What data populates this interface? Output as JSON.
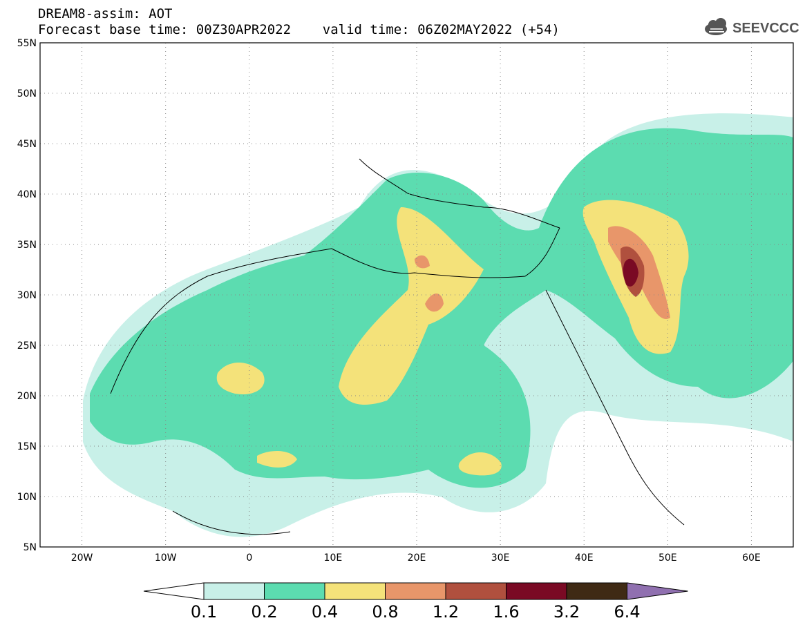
{
  "header": {
    "line1": "DREAM8-assim: AOT",
    "line2": "Forecast base time: 00Z30APR2022    valid time: 06Z02MAY2022 (+54)"
  },
  "logo": {
    "text": "SEEVCCC",
    "icon": "cloud-icon"
  },
  "map": {
    "lat_labels": [
      "55N",
      "50N",
      "45N",
      "40N",
      "35N",
      "30N",
      "25N",
      "20N",
      "15N",
      "10N",
      "5N"
    ],
    "lon_labels": [
      "20W",
      "10W",
      "0",
      "10E",
      "20E",
      "30E",
      "40E",
      "50E",
      "60E"
    ],
    "lat_range": [
      5,
      55
    ],
    "lon_range": [
      -25,
      65
    ],
    "grid": "dotted"
  },
  "colorbar": {
    "labels": [
      "0.1",
      "0.2",
      "0.4",
      "0.8",
      "1.2",
      "1.6",
      "3.2",
      "6.4"
    ],
    "colors": [
      "#ffffff",
      "#c8f0e8",
      "#5cdcb0",
      "#f4e27a",
      "#e8966a",
      "#b0503e",
      "#7a0a24",
      "#3f2a14",
      "#9070b0"
    ]
  }
}
